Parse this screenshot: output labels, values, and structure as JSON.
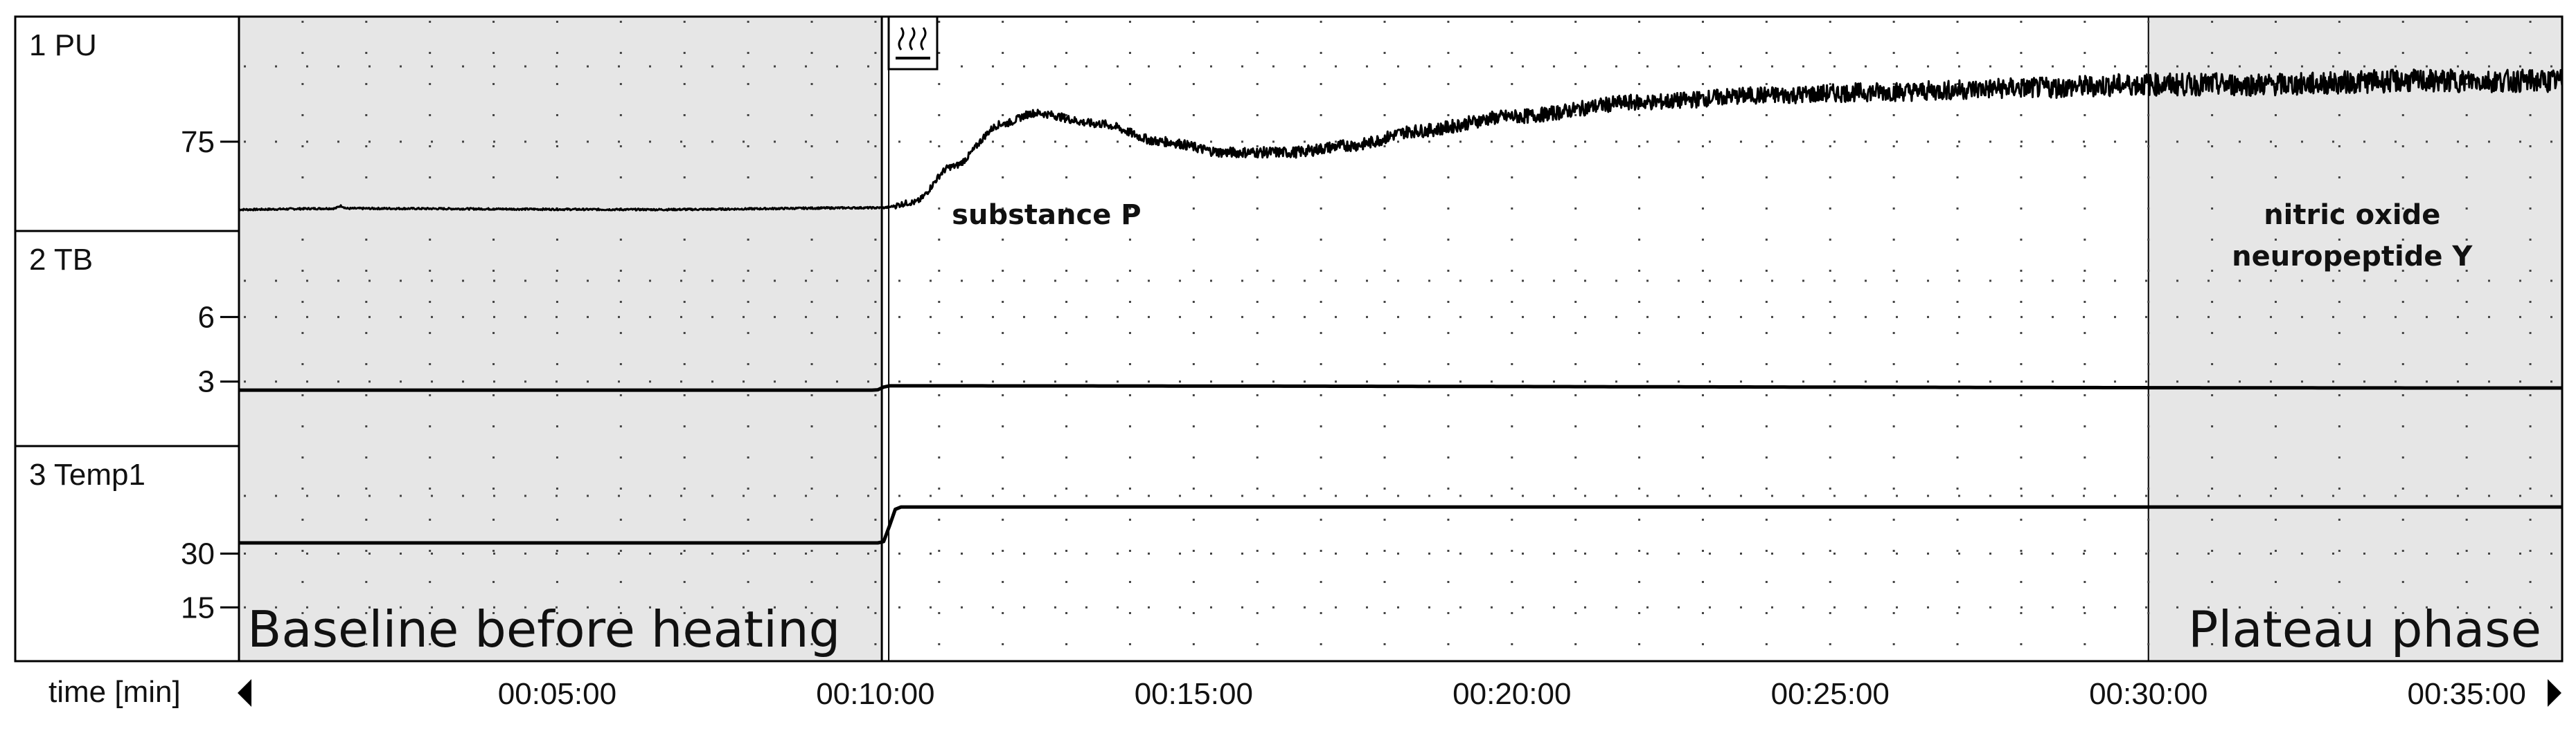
{
  "chart_data": {
    "type": "line",
    "xlabel": "time [min]",
    "x_tick_labels": [
      "00:05:00",
      "00:10:00",
      "00:15:00",
      "00:20:00",
      "00:25:00",
      "00:30:00",
      "00:35:00"
    ],
    "x_tick_minutes": [
      5,
      10,
      15,
      20,
      25,
      30,
      35
    ],
    "xlim_minutes": [
      0,
      36.5
    ],
    "shaded_regions": [
      {
        "start_min": 0,
        "end_min": 10.1,
        "label": "Baseline before heating"
      },
      {
        "start_min": 30,
        "end_min": 36.5,
        "label": "Plateau phase"
      }
    ],
    "heating_start_min": 10.1,
    "annotations": [
      {
        "text": "substance P",
        "x_min": 11.2,
        "channel": "1 PU"
      },
      {
        "text": "nitric oxide",
        "x_min": 33.2,
        "channel": "1 PU"
      },
      {
        "text": "neuropeptide Y",
        "x_min": 33.2,
        "channel": "1 PU"
      }
    ],
    "channels": [
      {
        "name": "1 PU",
        "y_ticks": [
          75
        ],
        "ylim": [
          50,
          110
        ],
        "noisy": true,
        "series": [
          {
            "x": 0,
            "y": 56
          },
          {
            "x": 1.5,
            "y": 56.3
          },
          {
            "x": 1.6,
            "y": 57
          },
          {
            "x": 1.7,
            "y": 56.3
          },
          {
            "x": 6.5,
            "y": 56
          },
          {
            "x": 10.1,
            "y": 56.5
          },
          {
            "x": 10.6,
            "y": 58
          },
          {
            "x": 11.2,
            "y": 68
          },
          {
            "x": 12,
            "y": 80
          },
          {
            "x": 12.5,
            "y": 83
          },
          {
            "x": 13.5,
            "y": 80
          },
          {
            "x": 14.5,
            "y": 75
          },
          {
            "x": 15.5,
            "y": 72
          },
          {
            "x": 16.5,
            "y": 72
          },
          {
            "x": 17.5,
            "y": 74
          },
          {
            "x": 18.5,
            "y": 78
          },
          {
            "x": 20,
            "y": 82
          },
          {
            "x": 22,
            "y": 86
          },
          {
            "x": 24,
            "y": 88
          },
          {
            "x": 26,
            "y": 89
          },
          {
            "x": 28,
            "y": 90
          },
          {
            "x": 30,
            "y": 91
          },
          {
            "x": 32,
            "y": 91
          },
          {
            "x": 34,
            "y": 92
          },
          {
            "x": 36.5,
            "y": 92
          }
        ]
      },
      {
        "name": "2 TB",
        "y_ticks": [
          3,
          6
        ],
        "ylim": [
          0,
          10
        ],
        "noisy": false,
        "series": [
          {
            "x": 0,
            "y": 2.6
          },
          {
            "x": 10,
            "y": 2.6
          },
          {
            "x": 10.2,
            "y": 2.8
          },
          {
            "x": 36.5,
            "y": 2.7
          }
        ]
      },
      {
        "name": "3 Temp1",
        "y_ticks": [
          15,
          30
        ],
        "ylim": [
          0,
          60
        ],
        "noisy": false,
        "series": [
          {
            "x": 0,
            "y": 33
          },
          {
            "x": 10.1,
            "y": 33
          },
          {
            "x": 10.35,
            "y": 43
          },
          {
            "x": 36.5,
            "y": 43
          }
        ]
      }
    ]
  },
  "controls": {
    "scroll_left_icon": "triangle-left-icon",
    "scroll_right_icon": "triangle-right-icon",
    "heat_marker_icon": "heat-waves-icon"
  }
}
